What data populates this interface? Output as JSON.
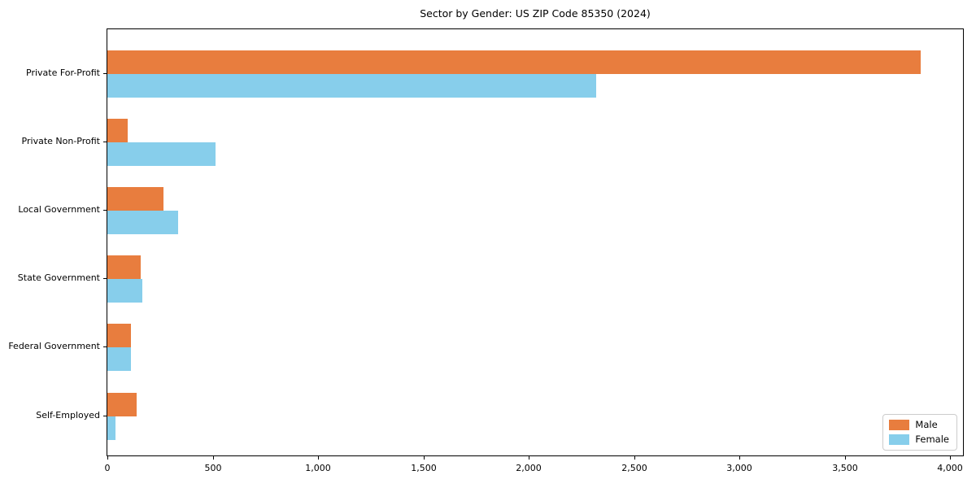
{
  "window": {
    "background": "#ffffff"
  },
  "chart_data": {
    "type": "bar",
    "orientation": "horizontal",
    "title": "Sector by Gender: US ZIP Code 85350 (2024)",
    "categories": [
      "Private For-Profit",
      "Private Non-Profit",
      "Local Government",
      "State Government",
      "Federal Government",
      "Self-Employed"
    ],
    "series": [
      {
        "name": "Male",
        "color": "#e87d3e",
        "values": [
          3860,
          95,
          265,
          158,
          110,
          140
        ]
      },
      {
        "name": "Female",
        "color": "#87ceeb",
        "values": [
          2320,
          515,
          335,
          166,
          113,
          40
        ]
      }
    ],
    "xlabel": "",
    "ylabel": "",
    "xlim": [
      0,
      4060
    ],
    "x_ticks": [
      0,
      500,
      1000,
      1500,
      2000,
      2500,
      3000,
      3500,
      4000
    ],
    "x_tick_labels": [
      "0",
      "500",
      "1,000",
      "1,500",
      "2,000",
      "2,500",
      "3,000",
      "3,500",
      "4,000"
    ],
    "grid": false,
    "legend": {
      "position": "lower-right",
      "entries": [
        "Male",
        "Female"
      ]
    }
  },
  "colors": {
    "male": "#e87d3e",
    "female": "#87ceeb",
    "axis": "#000000",
    "text": "#000000",
    "legend_border": "#cccccc",
    "plot_background": "#ffffff"
  }
}
